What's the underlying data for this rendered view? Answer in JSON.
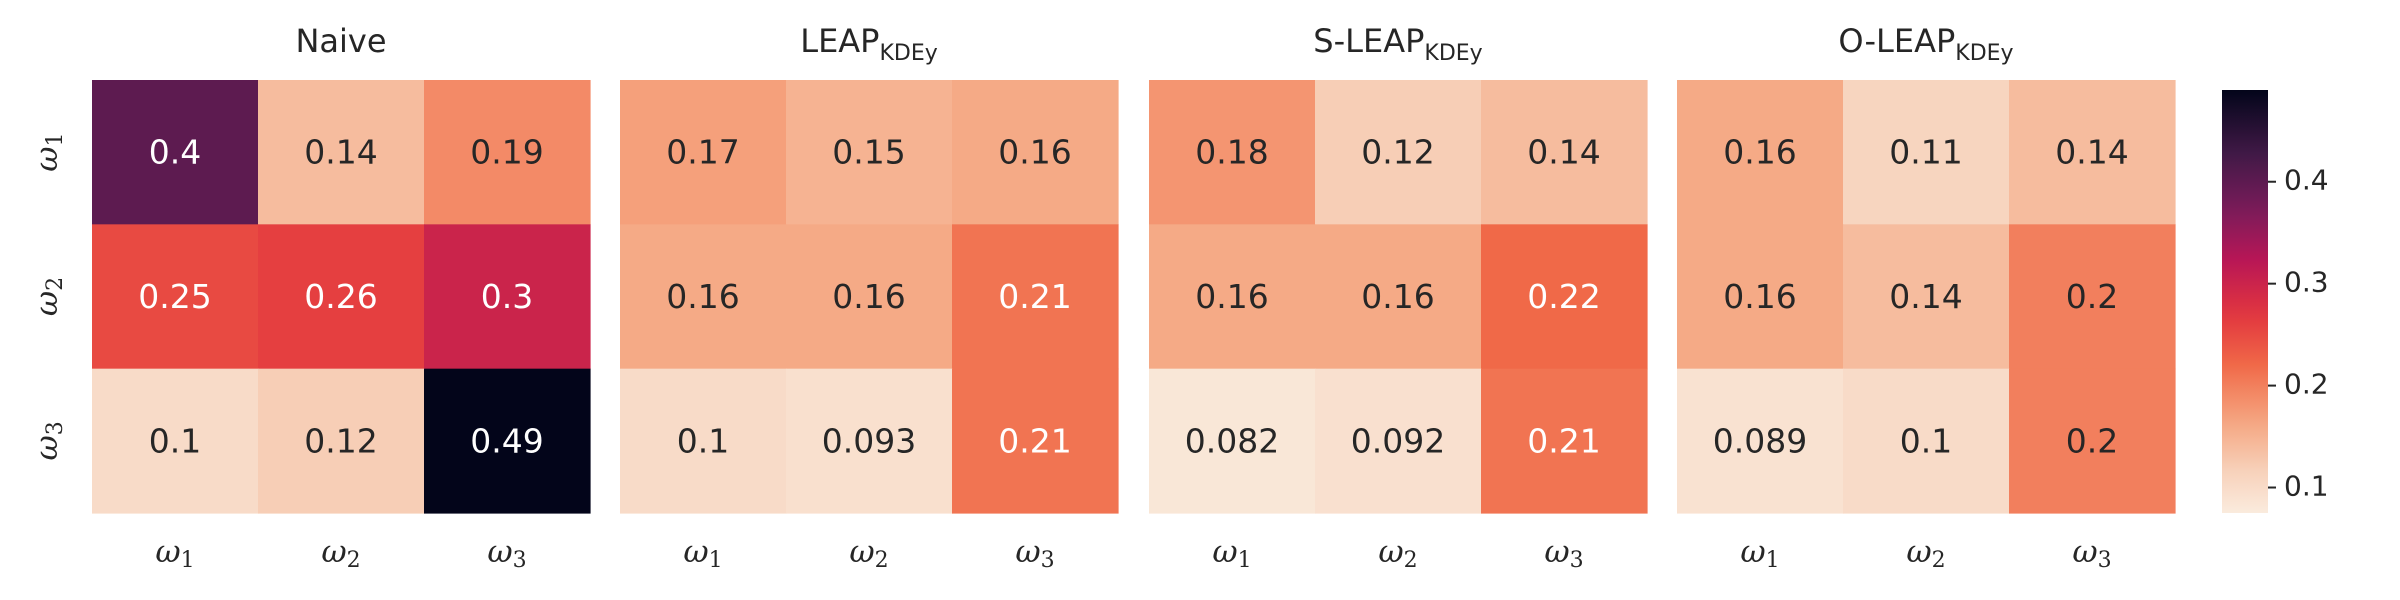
{
  "chart_data": {
    "type": "heatmap",
    "row_labels": [
      "ω1",
      "ω2",
      "ω3"
    ],
    "col_labels": [
      "ω1",
      "ω2",
      "ω3"
    ],
    "colormap": "rocket_r",
    "color_range": [
      0.075,
      0.49
    ],
    "colorbar": {
      "ticks": [
        0.1,
        0.2,
        0.3,
        0.4
      ]
    },
    "panels": [
      {
        "title": "Naive",
        "title_sub": "",
        "values": [
          [
            0.4,
            0.14,
            0.19
          ],
          [
            0.25,
            0.26,
            0.3
          ],
          [
            0.1,
            0.12,
            0.49
          ]
        ],
        "labels": [
          [
            "0.4",
            "0.14",
            "0.19"
          ],
          [
            "0.25",
            "0.26",
            "0.3"
          ],
          [
            "0.1",
            "0.12",
            "0.49"
          ]
        ]
      },
      {
        "title": "LEAP",
        "title_sub": "KDEy",
        "values": [
          [
            0.17,
            0.15,
            0.16
          ],
          [
            0.16,
            0.16,
            0.21
          ],
          [
            0.1,
            0.093,
            0.21
          ]
        ],
        "labels": [
          [
            "0.17",
            "0.15",
            "0.16"
          ],
          [
            "0.16",
            "0.16",
            "0.21"
          ],
          [
            "0.1",
            "0.093",
            "0.21"
          ]
        ]
      },
      {
        "title": "S-LEAP",
        "title_sub": "KDEy",
        "values": [
          [
            0.18,
            0.12,
            0.14
          ],
          [
            0.16,
            0.16,
            0.22
          ],
          [
            0.082,
            0.092,
            0.21
          ]
        ],
        "labels": [
          [
            "0.18",
            "0.12",
            "0.14"
          ],
          [
            "0.16",
            "0.16",
            "0.22"
          ],
          [
            "0.082",
            "0.092",
            "0.21"
          ]
        ]
      },
      {
        "title": "O-LEAP",
        "title_sub": "KDEy",
        "values": [
          [
            0.16,
            0.11,
            0.14
          ],
          [
            0.16,
            0.14,
            0.2
          ],
          [
            0.089,
            0.1,
            0.2
          ]
        ],
        "labels": [
          [
            "0.16",
            "0.11",
            "0.14"
          ],
          [
            "0.16",
            "0.14",
            "0.2"
          ],
          [
            "0.089",
            "0.1",
            "0.2"
          ]
        ]
      }
    ]
  }
}
